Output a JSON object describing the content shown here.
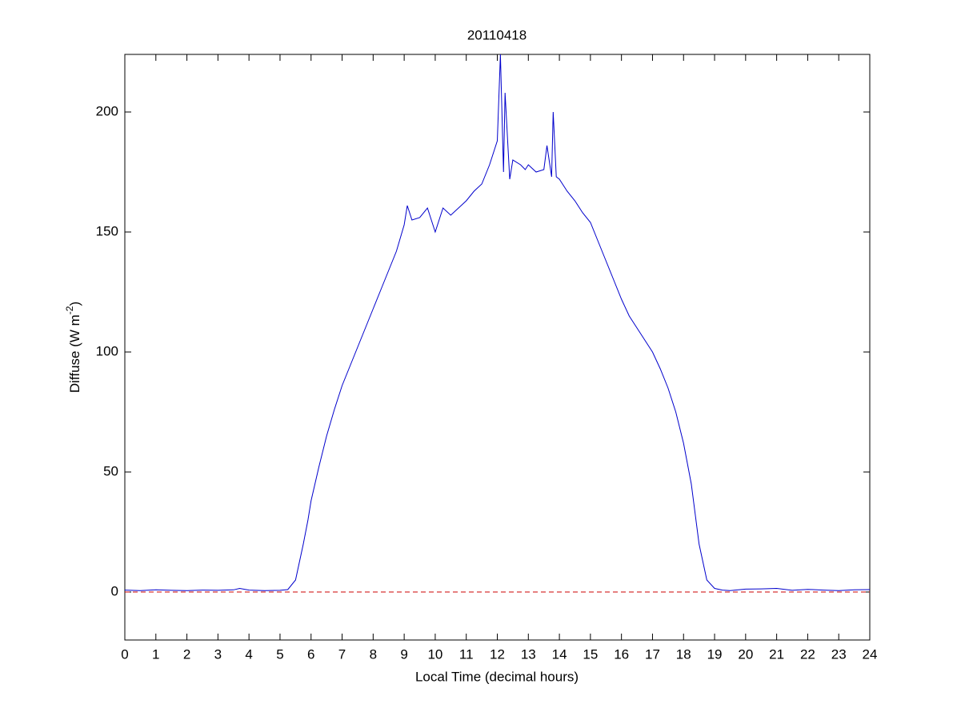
{
  "chart_data": {
    "type": "line",
    "title": "20110418",
    "xlabel": "Local Time (decimal hours)",
    "ylabel_parts": [
      "Diffuse (W m",
      "-2",
      ")"
    ],
    "xlim": [
      0,
      24
    ],
    "ylim": [
      -20,
      224
    ],
    "xticks": [
      0,
      1,
      2,
      3,
      4,
      5,
      6,
      7,
      8,
      9,
      10,
      11,
      12,
      13,
      14,
      15,
      16,
      17,
      18,
      19,
      20,
      21,
      22,
      23,
      24
    ],
    "yticks": [
      0,
      50,
      100,
      150,
      200
    ],
    "reference_line": {
      "value": 0,
      "color": "#cc0000",
      "dashed": true
    },
    "series": [
      {
        "color": "#0000cc",
        "x": [
          0,
          0.5,
          1,
          1.5,
          2,
          2.5,
          3,
          3.5,
          3.7,
          4,
          4.5,
          5,
          5.25,
          5.5,
          5.75,
          5.9,
          6,
          6.25,
          6.5,
          6.75,
          7,
          7.25,
          7.5,
          7.75,
          8,
          8.25,
          8.5,
          8.75,
          9,
          9.1,
          9.25,
          9.5,
          9.75,
          10,
          10.25,
          10.5,
          10.75,
          11,
          11.25,
          11.5,
          11.75,
          12,
          12.1,
          12.2,
          12.25,
          12.4,
          12.5,
          12.75,
          12.9,
          13,
          13.25,
          13.5,
          13.6,
          13.75,
          13.8,
          13.9,
          14,
          14.25,
          14.5,
          14.75,
          15,
          15.25,
          15.5,
          15.75,
          16,
          16.25,
          16.5,
          16.75,
          17,
          17.25,
          17.5,
          17.75,
          18,
          18.25,
          18.5,
          18.75,
          19,
          19.25,
          19.5,
          20,
          20.5,
          21,
          21.5,
          22,
          22.5,
          23,
          23.5,
          24
        ],
        "values": [
          0.8,
          0.6,
          0.9,
          0.7,
          0.6,
          0.8,
          0.7,
          0.9,
          1.5,
          0.8,
          0.6,
          0.7,
          1,
          5,
          20,
          30,
          38,
          52,
          65,
          76,
          86,
          94,
          102,
          110,
          118,
          126,
          134,
          142,
          153,
          161,
          155,
          156,
          160,
          150,
          160,
          157,
          160,
          163,
          167,
          170,
          178,
          188,
          224,
          175,
          208,
          172,
          180,
          178,
          176,
          178,
          175,
          176,
          186,
          173,
          200,
          173,
          172,
          167,
          163,
          158,
          154,
          146,
          138,
          130,
          122,
          115,
          110,
          105,
          100,
          93,
          85,
          75,
          62,
          45,
          20,
          5,
          1.5,
          0.8,
          0.6,
          1.2,
          1.3,
          1.5,
          0.7,
          1.1,
          0.8,
          0.6,
          0.9,
          1
        ]
      }
    ]
  }
}
